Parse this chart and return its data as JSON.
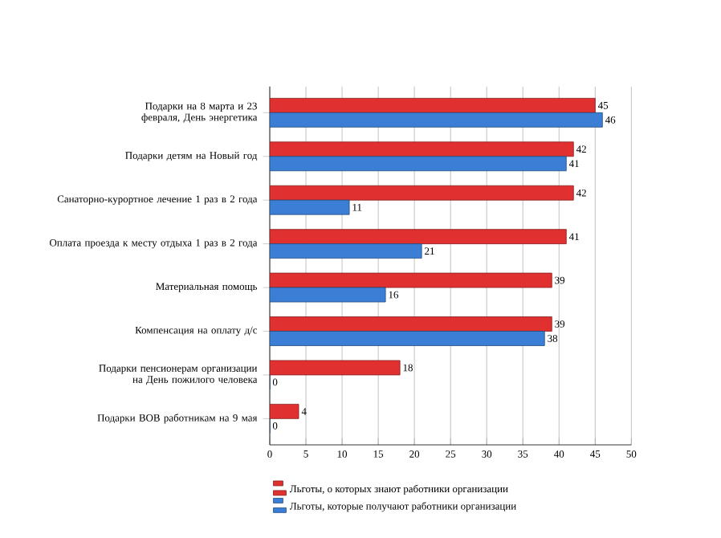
{
  "chart_data": {
    "type": "bar",
    "orientation": "horizontal",
    "categories": [
      "Подарки на 8 марта и 23 февраля, День энергетика",
      "Подарки детям на Новый год",
      "Санаторно-курортное лечение 1 раз в 2 года",
      "Оплата проезда к месту отдыха 1 раз в 2 года",
      "Материальная помощь",
      "Компенсация на оплату д/с",
      "Подарки пенсионерам организации на День пожилого человека",
      "Подарки ВОВ работникам на 9 мая"
    ],
    "series": [
      {
        "name": "Льготы, о которых знают работники организации",
        "color": "#e03030",
        "values": [
          45,
          42,
          42,
          41,
          39,
          39,
          18,
          4
        ]
      },
      {
        "name": "Льготы, которые получают работники организации",
        "color": "#3a7fd5",
        "values": [
          46,
          41,
          11,
          21,
          16,
          38,
          0,
          0
        ]
      }
    ],
    "xlim": [
      0,
      50
    ],
    "xticks": [
      0,
      5,
      10,
      15,
      20,
      25,
      30,
      35,
      40,
      45,
      50
    ],
    "grid": "x",
    "legend": "bottom",
    "data_labels": true
  }
}
